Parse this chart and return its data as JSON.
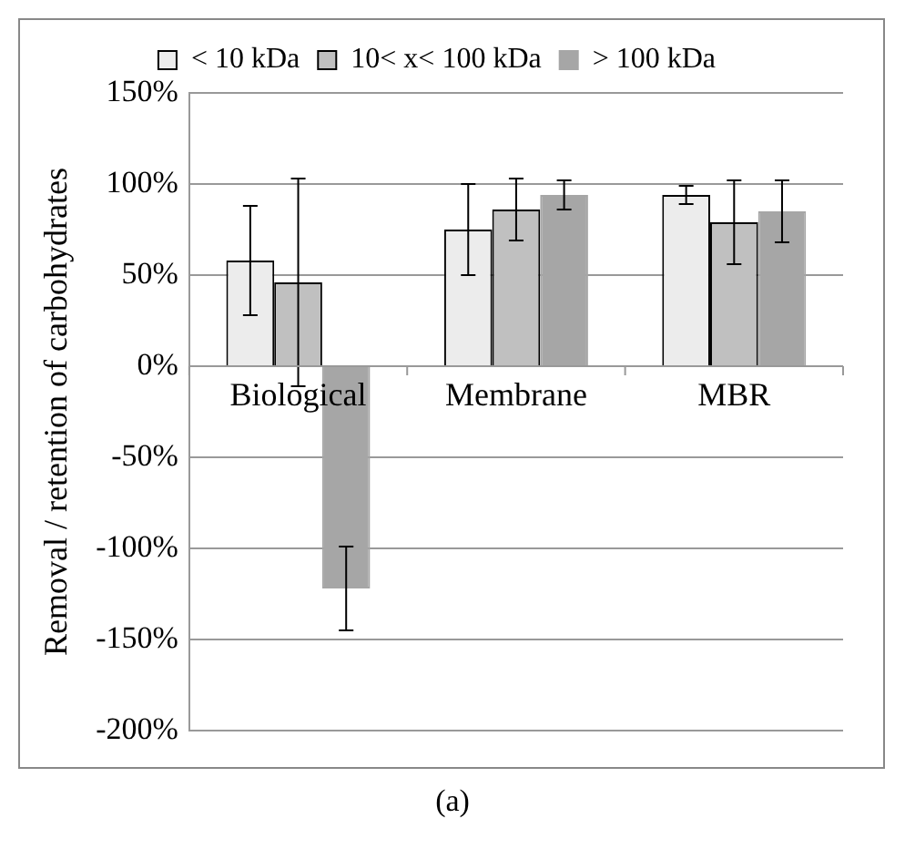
{
  "chart_data": {
    "type": "bar",
    "ylabel": "Removal / retention of carbohydrates",
    "categories": [
      "Biological",
      "Membrane",
      "MBR"
    ],
    "series": [
      {
        "name": "< 10 kDa",
        "color": "#ececec",
        "values": [
          58,
          75,
          94
        ],
        "errors": [
          30,
          25,
          5
        ]
      },
      {
        "name": "10< x< 100 kDa",
        "color": "#c0c0c0",
        "values": [
          46,
          86,
          79
        ],
        "errors": [
          57,
          17,
          23
        ]
      },
      {
        "name": "> 100 kDa",
        "color": "#a6a6a6",
        "values": [
          -122,
          94,
          85
        ],
        "errors": [
          23,
          8,
          17
        ]
      }
    ],
    "ylim": [
      -200,
      150
    ],
    "yticks": [
      {
        "value": -200,
        "label": "-200%"
      },
      {
        "value": -150,
        "label": "-150%"
      },
      {
        "value": -100,
        "label": "-100%"
      },
      {
        "value": -50,
        "label": "-50%"
      },
      {
        "value": 0,
        "label": "0%"
      },
      {
        "value": 50,
        "label": "50%"
      },
      {
        "value": 100,
        "label": "100%"
      },
      {
        "value": 150,
        "label": "150%"
      }
    ],
    "grid": "y",
    "legend": "top",
    "annotations": [
      "(a)"
    ]
  }
}
